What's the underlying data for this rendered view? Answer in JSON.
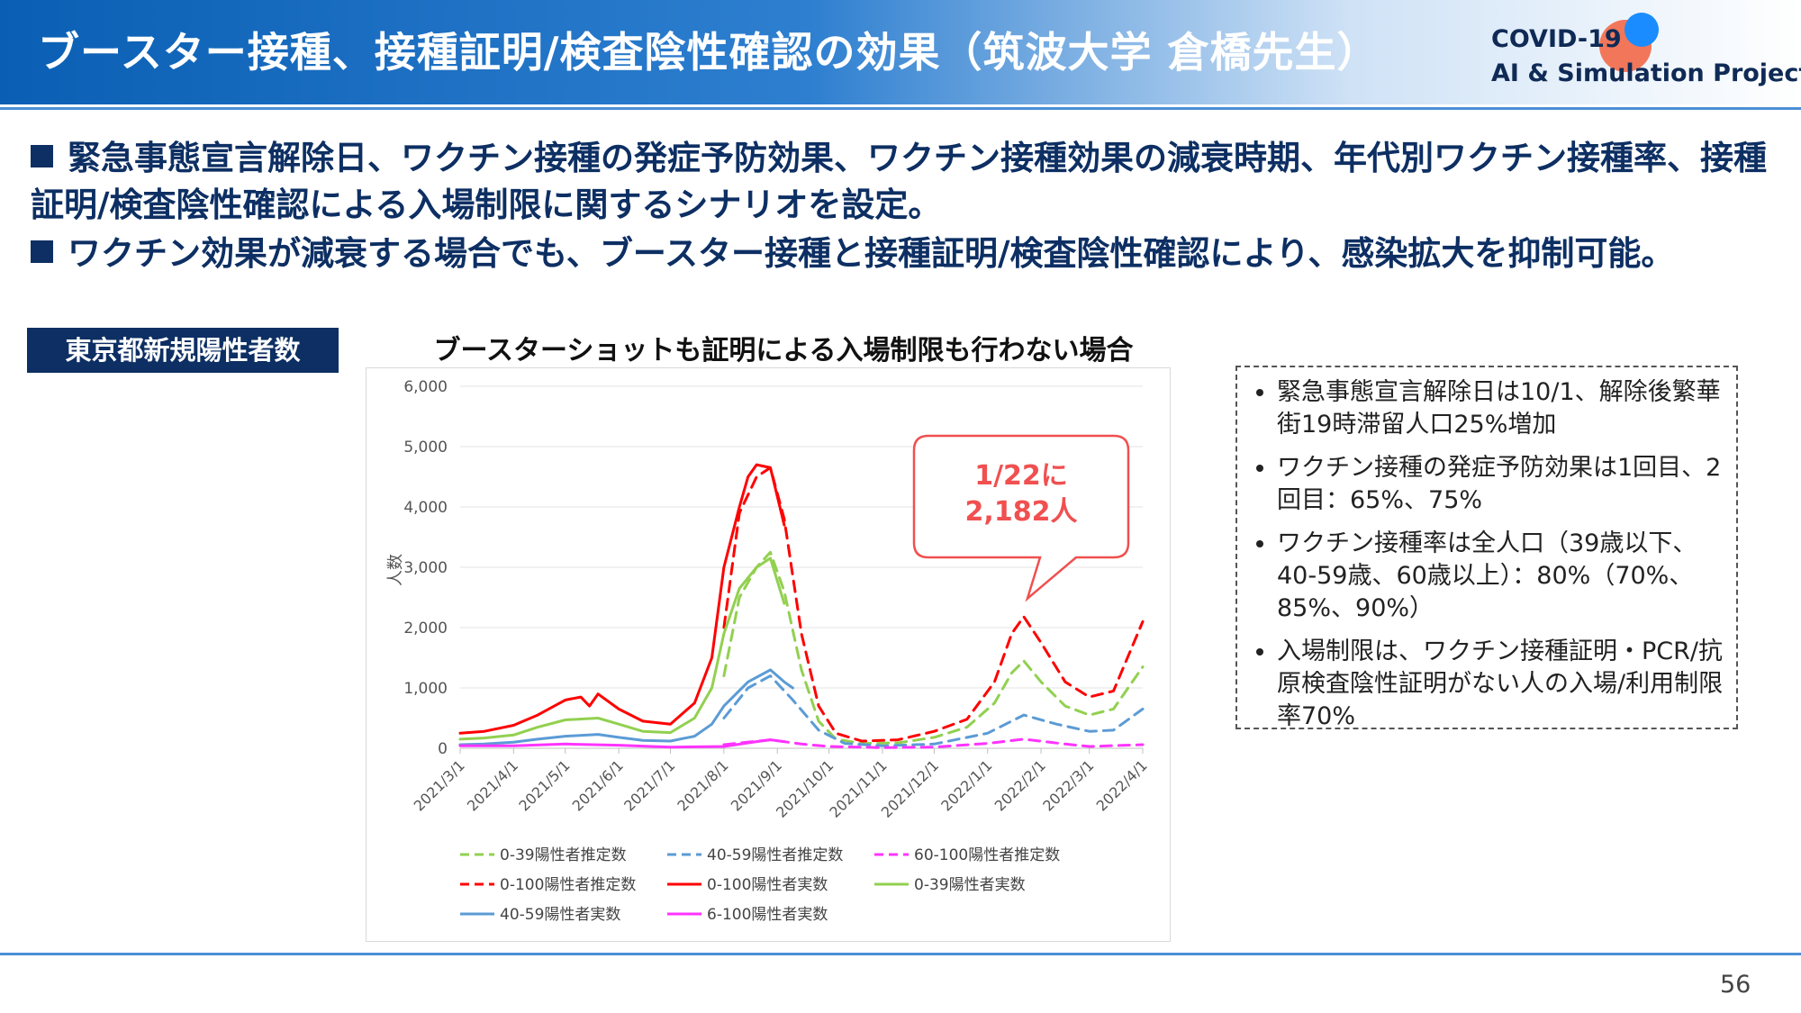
{
  "header": {
    "title": "ブースター接種、接種証明/検査陰性確認の効果（筑波大学 倉橋先生）",
    "logo_line1": "COVID-19",
    "logo_line2": "AI & Simulation Project"
  },
  "bullets": [
    "緊急事態宣言解除日、ワクチン接種の発症予防効果、ワクチン接種効果の減衰時期、年代別ワクチン接種率、接種証明/検査陰性確認による入場制限に関するシナリオを設定。",
    "ワクチン効果が減衰する場合でも、ブースター接種と接種証明/検査陰性確認により、感染拡大を抑制可能。"
  ],
  "left_label": "東京都新規陽性者数",
  "info_box": [
    "緊急事態宣言解除日は10/1、解除後繁華街19時滞留人口25%増加",
    "ワクチン接種の発症予防効果は1回目、2回目：65%、75%",
    "ワクチン接種率は全人口（39歳以下、40-59歳、60歳以上）：80%（70%、85%、90%）",
    "入場制限は、ワクチン接種証明・PCR/抗原検査陰性証明がない人の入場/利用制限率70%"
  ],
  "page_number": "56",
  "colors": {
    "green": "#92d050",
    "blue": "#5b9bd5",
    "magenta": "#ff33ff",
    "red": "#ff0000",
    "navy": "#0d2f63",
    "callout": "#f05050"
  },
  "chart_data": {
    "type": "line",
    "title": "ブースターショットも証明による入場制限も行わない場合",
    "ylabel": "人数",
    "xlabel": "",
    "ylim": [
      0,
      6000
    ],
    "yticks": [
      0,
      1000,
      2000,
      3000,
      4000,
      5000,
      6000
    ],
    "ytick_labels": [
      "0",
      "1,000",
      "2,000",
      "3,000",
      "4,000",
      "5,000",
      "6,000"
    ],
    "xlim": [
      "2021-03-01",
      "2022-04-01"
    ],
    "xtick_labels": [
      "2021/3/1",
      "2021/4/1",
      "2021/5/1",
      "2021/6/1",
      "2021/7/1",
      "2021/8/1",
      "2021/9/1",
      "2021/10/1",
      "2021/11/1",
      "2021/12/1",
      "2022/1/1",
      "2022/2/1",
      "2022/3/1",
      "2022/4/1"
    ],
    "grid": true,
    "annotation": {
      "lines": [
        "1/22に",
        "2,182人"
      ]
    },
    "series": [
      {
        "name": "0-39陽性者推定数",
        "color": "#92d050",
        "dash": true,
        "points": [
          [
            "2021-08-01",
            1200
          ],
          [
            "2021-08-10",
            2500
          ],
          [
            "2021-08-20",
            3000
          ],
          [
            "2021-08-28",
            3250
          ],
          [
            "2021-09-05",
            2600
          ],
          [
            "2021-09-15",
            1300
          ],
          [
            "2021-09-25",
            450
          ],
          [
            "2021-10-05",
            150
          ],
          [
            "2021-10-20",
            80
          ],
          [
            "2021-11-10",
            90
          ],
          [
            "2021-12-01",
            180
          ],
          [
            "2021-12-20",
            350
          ],
          [
            "2022-01-05",
            750
          ],
          [
            "2022-01-15",
            1250
          ],
          [
            "2022-01-22",
            1450
          ],
          [
            "2022-02-01",
            1100
          ],
          [
            "2022-02-15",
            700
          ],
          [
            "2022-03-01",
            550
          ],
          [
            "2022-03-15",
            650
          ],
          [
            "2022-04-01",
            1350
          ]
        ]
      },
      {
        "name": "40-59陽性者推定数",
        "color": "#5b9bd5",
        "dash": true,
        "points": [
          [
            "2021-08-01",
            500
          ],
          [
            "2021-08-15",
            1000
          ],
          [
            "2021-08-28",
            1200
          ],
          [
            "2021-09-10",
            800
          ],
          [
            "2021-09-25",
            300
          ],
          [
            "2021-10-10",
            80
          ],
          [
            "2021-11-01",
            40
          ],
          [
            "2021-12-01",
            70
          ],
          [
            "2022-01-01",
            250
          ],
          [
            "2022-01-22",
            550
          ],
          [
            "2022-02-10",
            400
          ],
          [
            "2022-03-01",
            280
          ],
          [
            "2022-03-15",
            300
          ],
          [
            "2022-04-01",
            650
          ]
        ]
      },
      {
        "name": "60-100陽性者推定数",
        "color": "#ff33ff",
        "dash": true,
        "points": [
          [
            "2021-08-01",
            60
          ],
          [
            "2021-08-28",
            140
          ],
          [
            "2021-09-15",
            70
          ],
          [
            "2021-10-01",
            30
          ],
          [
            "2021-11-01",
            10
          ],
          [
            "2021-12-01",
            20
          ],
          [
            "2022-01-01",
            80
          ],
          [
            "2022-01-22",
            150
          ],
          [
            "2022-02-15",
            70
          ],
          [
            "2022-03-01",
            30
          ],
          [
            "2022-04-01",
            60
          ]
        ]
      },
      {
        "name": "0-100陽性者推定数",
        "color": "#ff0000",
        "dash": true,
        "points": [
          [
            "2021-08-01",
            2000
          ],
          [
            "2021-08-10",
            3900
          ],
          [
            "2021-08-20",
            4500
          ],
          [
            "2021-08-28",
            4650
          ],
          [
            "2021-09-05",
            3800
          ],
          [
            "2021-09-15",
            1900
          ],
          [
            "2021-09-25",
            700
          ],
          [
            "2021-10-05",
            250
          ],
          [
            "2021-10-20",
            120
          ],
          [
            "2021-11-10",
            140
          ],
          [
            "2021-12-01",
            280
          ],
          [
            "2021-12-20",
            480
          ],
          [
            "2022-01-05",
            1100
          ],
          [
            "2022-01-15",
            1900
          ],
          [
            "2022-01-22",
            2182
          ],
          [
            "2022-02-01",
            1750
          ],
          [
            "2022-02-15",
            1100
          ],
          [
            "2022-03-01",
            850
          ],
          [
            "2022-03-15",
            950
          ],
          [
            "2022-04-01",
            2100
          ]
        ]
      },
      {
        "name": "0-100陽性者実数",
        "color": "#ff0000",
        "dash": false,
        "points": [
          [
            "2021-03-01",
            250
          ],
          [
            "2021-03-15",
            280
          ],
          [
            "2021-04-01",
            380
          ],
          [
            "2021-04-15",
            550
          ],
          [
            "2021-05-01",
            800
          ],
          [
            "2021-05-10",
            850
          ],
          [
            "2021-05-15",
            700
          ],
          [
            "2021-05-20",
            900
          ],
          [
            "2021-06-01",
            650
          ],
          [
            "2021-06-15",
            450
          ],
          [
            "2021-07-01",
            400
          ],
          [
            "2021-07-15",
            750
          ],
          [
            "2021-07-25",
            1500
          ],
          [
            "2021-08-01",
            3000
          ],
          [
            "2021-08-10",
            4000
          ],
          [
            "2021-08-15",
            4500
          ],
          [
            "2021-08-20",
            4700
          ],
          [
            "2021-08-28",
            4650
          ],
          [
            "2021-09-05",
            3700
          ]
        ]
      },
      {
        "name": "0-39陽性者実数",
        "color": "#92d050",
        "dash": false,
        "points": [
          [
            "2021-03-01",
            150
          ],
          [
            "2021-03-15",
            170
          ],
          [
            "2021-04-01",
            220
          ],
          [
            "2021-04-15",
            350
          ],
          [
            "2021-05-01",
            470
          ],
          [
            "2021-05-20",
            500
          ],
          [
            "2021-06-01",
            400
          ],
          [
            "2021-06-15",
            280
          ],
          [
            "2021-07-01",
            260
          ],
          [
            "2021-07-15",
            500
          ],
          [
            "2021-07-25",
            1000
          ],
          [
            "2021-08-01",
            1900
          ],
          [
            "2021-08-10",
            2650
          ],
          [
            "2021-08-20",
            3000
          ],
          [
            "2021-08-28",
            3150
          ],
          [
            "2021-09-05",
            2400
          ]
        ]
      },
      {
        "name": "40-59陽性者実数",
        "color": "#5b9bd5",
        "dash": false,
        "points": [
          [
            "2021-03-01",
            60
          ],
          [
            "2021-03-15",
            70
          ],
          [
            "2021-04-01",
            100
          ],
          [
            "2021-04-15",
            150
          ],
          [
            "2021-05-01",
            200
          ],
          [
            "2021-05-20",
            230
          ],
          [
            "2021-06-01",
            180
          ],
          [
            "2021-06-15",
            130
          ],
          [
            "2021-07-01",
            120
          ],
          [
            "2021-07-15",
            200
          ],
          [
            "2021-07-25",
            400
          ],
          [
            "2021-08-01",
            700
          ],
          [
            "2021-08-15",
            1100
          ],
          [
            "2021-08-28",
            1300
          ],
          [
            "2021-09-05",
            1100
          ],
          [
            "2021-09-10",
            1000
          ]
        ]
      },
      {
        "name": "6-100陽性者実数",
        "color": "#ff33ff",
        "dash": false,
        "points": [
          [
            "2021-03-01",
            40
          ],
          [
            "2021-04-01",
            40
          ],
          [
            "2021-05-01",
            70
          ],
          [
            "2021-06-01",
            50
          ],
          [
            "2021-07-01",
            20
          ],
          [
            "2021-08-01",
            30
          ],
          [
            "2021-08-20",
            110
          ],
          [
            "2021-08-28",
            140
          ],
          [
            "2021-09-05",
            110
          ]
        ]
      }
    ]
  }
}
